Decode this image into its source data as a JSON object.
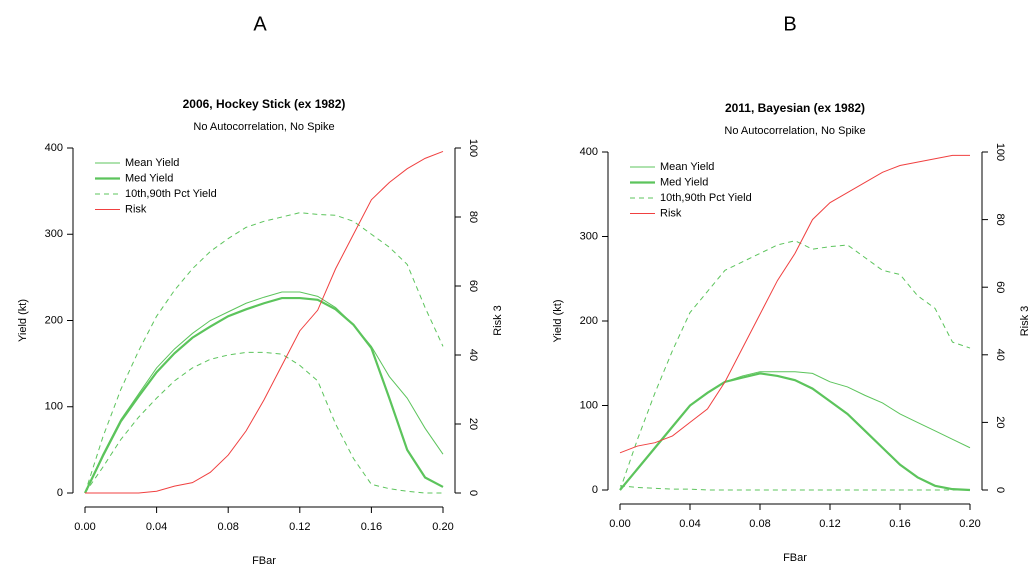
{
  "chart_data": [
    {
      "type": "line",
      "label": "A",
      "title": "2006, Hockey Stick (ex 1982)",
      "subtitle": "No Autocorrelation, No Spike",
      "xlabel": "FBar",
      "ylabel": "Yield (kt)",
      "y2label": "Risk 3",
      "x": [
        0,
        0.01,
        0.02,
        0.03,
        0.04,
        0.05,
        0.06,
        0.07,
        0.08,
        0.09,
        0.1,
        0.11,
        0.12,
        0.13,
        0.14,
        0.15,
        0.16,
        0.17,
        0.18,
        0.19,
        0.2
      ],
      "xlim": [
        0,
        0.2
      ],
      "xticks": [
        {
          "value": 0,
          "label": "0.00"
        },
        0.04,
        0.08,
        0.12,
        0.16,
        {
          "value": 0.2,
          "label": "0.20"
        }
      ],
      "ylim": [
        0,
        400
      ],
      "yticks": [
        0,
        100,
        200,
        300,
        400
      ],
      "y2lim": [
        0,
        100
      ],
      "y2ticks": [
        0,
        20,
        40,
        60,
        80,
        100
      ],
      "legend": "top-left",
      "series": [
        {
          "name": "Mean Yield",
          "color": "#5cc45c",
          "width": 1,
          "dashed": false,
          "values": [
            0,
            45,
            85,
            115,
            145,
            167,
            185,
            200,
            210,
            220,
            227,
            233,
            233,
            228,
            215,
            195,
            170,
            135,
            110,
            75,
            45
          ]
        },
        {
          "name": "Med Yield",
          "color": "#5cc45c",
          "width": 2.2,
          "dashed": false,
          "values": [
            0,
            43,
            83,
            112,
            140,
            162,
            180,
            193,
            205,
            213,
            220,
            226,
            226,
            224,
            213,
            195,
            168,
            110,
            50,
            18,
            7
          ]
        },
        {
          "name": "10th,90th Pct Yield",
          "color": "#5cc45c",
          "width": 1,
          "dashed": true,
          "values": [
            0,
            30,
            62,
            88,
            110,
            130,
            145,
            155,
            160,
            163,
            163,
            161,
            148,
            130,
            80,
            40,
            10,
            5,
            2,
            0,
            0
          ]
        },
        {
          "color": "#5cc45c",
          "width": 1,
          "dashed": true,
          "values": [
            0,
            65,
            120,
            165,
            205,
            235,
            260,
            280,
            295,
            308,
            315,
            320,
            325,
            323,
            322,
            315,
            300,
            285,
            265,
            215,
            170
          ]
        },
        {
          "name": "Risk",
          "color": "#f04040",
          "width": 1,
          "dashed": false,
          "axis": "y2",
          "values": [
            0,
            0,
            0,
            0,
            0.5,
            2,
            3,
            6,
            11,
            18,
            27,
            37,
            47,
            53,
            65,
            75,
            85,
            90,
            94,
            97,
            99
          ]
        }
      ]
    },
    {
      "type": "line",
      "label": "B",
      "title": "2011, Bayesian (ex 1982)",
      "subtitle": "No Autocorrelation, No Spike",
      "xlabel": "FBar",
      "ylabel": "Yield (kt)",
      "y2label": "Risk 3",
      "x": [
        0,
        0.01,
        0.02,
        0.03,
        0.04,
        0.05,
        0.06,
        0.07,
        0.08,
        0.09,
        0.1,
        0.11,
        0.12,
        0.13,
        0.14,
        0.15,
        0.16,
        0.17,
        0.18,
        0.19,
        0.2
      ],
      "xlim": [
        0,
        0.2
      ],
      "xticks": [
        {
          "value": 0,
          "label": "0.00"
        },
        0.04,
        0.08,
        0.12,
        0.16,
        {
          "value": 0.2,
          "label": "0.20"
        }
      ],
      "ylim": [
        0,
        400
      ],
      "yticks": [
        0,
        100,
        200,
        300,
        400
      ],
      "y2lim": [
        0,
        100
      ],
      "y2ticks": [
        0,
        20,
        40,
        60,
        80,
        100
      ],
      "legend": "top-left",
      "series": [
        {
          "name": "Mean Yield",
          "color": "#5cc45c",
          "width": 1,
          "dashed": false,
          "values": [
            0,
            25,
            50,
            75,
            100,
            115,
            128,
            135,
            140,
            140,
            140,
            138,
            128,
            122,
            112,
            103,
            90,
            80,
            70,
            60,
            50
          ]
        },
        {
          "name": "Med Yield",
          "color": "#5cc45c",
          "width": 2.2,
          "dashed": false,
          "values": [
            0,
            25,
            50,
            75,
            100,
            115,
            128,
            133,
            138,
            135,
            130,
            120,
            105,
            90,
            70,
            50,
            30,
            15,
            5,
            1,
            0
          ]
        },
        {
          "name": "10th,90th Pct Yield",
          "color": "#5cc45c",
          "width": 1,
          "dashed": true,
          "values": [
            5,
            3,
            2,
            1,
            1,
            0,
            0,
            0,
            0,
            0,
            0,
            0,
            0,
            0,
            0,
            0,
            0,
            0,
            0,
            0,
            0
          ]
        },
        {
          "color": "#5cc45c",
          "width": 1,
          "dashed": true,
          "values": [
            0,
            60,
            115,
            165,
            210,
            235,
            260,
            270,
            280,
            290,
            295,
            285,
            288,
            290,
            275,
            260,
            255,
            230,
            215,
            175,
            168
          ]
        },
        {
          "name": "Risk",
          "color": "#f04040",
          "width": 1,
          "dashed": false,
          "axis": "y2",
          "values": [
            11,
            13,
            14,
            16,
            20,
            24,
            32,
            42,
            52,
            62,
            70,
            80,
            85,
            88,
            91,
            94,
            96,
            97,
            98,
            99,
            99
          ]
        }
      ]
    }
  ]
}
